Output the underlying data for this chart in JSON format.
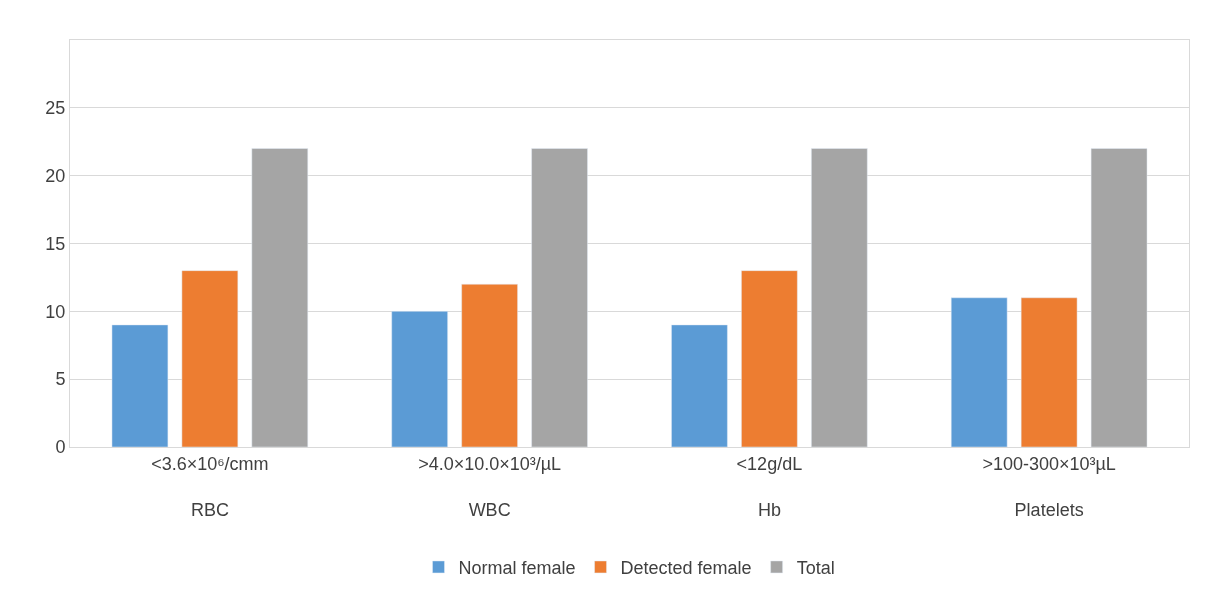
{
  "chart_data": {
    "type": "bar",
    "categories": [
      "<3.6×10⁶/cmm\nRBC",
      ">4.0×10.0×10³/µL\nWBC",
      "<12g/dL\nHb",
      ">100-300×10³µL\nPlatelets"
    ],
    "series": [
      {
        "name": "Normal female",
        "color": "#5b9bd5",
        "values": [
          9,
          10,
          9,
          11
        ]
      },
      {
        "name": "Detected female",
        "color": "#ed7d31",
        "values": [
          13,
          12,
          13,
          11
        ]
      },
      {
        "name": "Total",
        "color": "#a5a5a5",
        "values": [
          22,
          22,
          22,
          22
        ]
      }
    ],
    "ylim": [
      0,
      30
    ],
    "yticks": [
      0,
      5,
      10,
      15,
      20,
      25
    ],
    "grid": "y",
    "legend": "bottom"
  }
}
